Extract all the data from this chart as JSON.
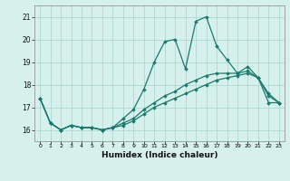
{
  "xlabel": "Humidex (Indice chaleur)",
  "x": [
    0,
    1,
    2,
    3,
    4,
    5,
    6,
    7,
    8,
    9,
    10,
    11,
    12,
    13,
    14,
    15,
    16,
    17,
    18,
    19,
    20,
    21,
    22,
    23
  ],
  "line1": [
    17.4,
    16.3,
    16.0,
    16.2,
    16.1,
    16.1,
    16.0,
    16.1,
    16.5,
    16.9,
    17.8,
    19.0,
    19.9,
    20.0,
    18.7,
    20.8,
    21.0,
    19.7,
    19.1,
    18.5,
    18.8,
    18.3,
    17.2,
    17.2
  ],
  "line2": [
    17.4,
    16.3,
    16.0,
    16.2,
    16.1,
    16.1,
    16.0,
    16.1,
    16.3,
    16.5,
    16.9,
    17.2,
    17.5,
    17.7,
    18.0,
    18.2,
    18.4,
    18.5,
    18.5,
    18.5,
    18.6,
    18.3,
    17.6,
    17.2
  ],
  "line3": [
    17.4,
    16.3,
    16.0,
    16.2,
    16.1,
    16.1,
    16.0,
    16.1,
    16.2,
    16.4,
    16.7,
    17.0,
    17.2,
    17.4,
    17.6,
    17.8,
    18.0,
    18.2,
    18.3,
    18.4,
    18.5,
    18.3,
    17.5,
    17.2
  ],
  "line_color": "#1a7a6e",
  "bg_color": "#d6f0ec",
  "grid_color": "#afd8d2",
  "ylim": [
    15.5,
    21.5
  ],
  "yticks": [
    16,
    17,
    18,
    19,
    20,
    21
  ],
  "xlim": [
    -0.5,
    23.5
  ],
  "xtick_labels": [
    "0",
    "1",
    "2",
    "3",
    "4",
    "5",
    "6",
    "7",
    "8",
    "9",
    "10",
    "11",
    "12",
    "13",
    "14",
    "15",
    "16",
    "17",
    "18",
    "19",
    "20",
    "21",
    "22",
    "23"
  ]
}
